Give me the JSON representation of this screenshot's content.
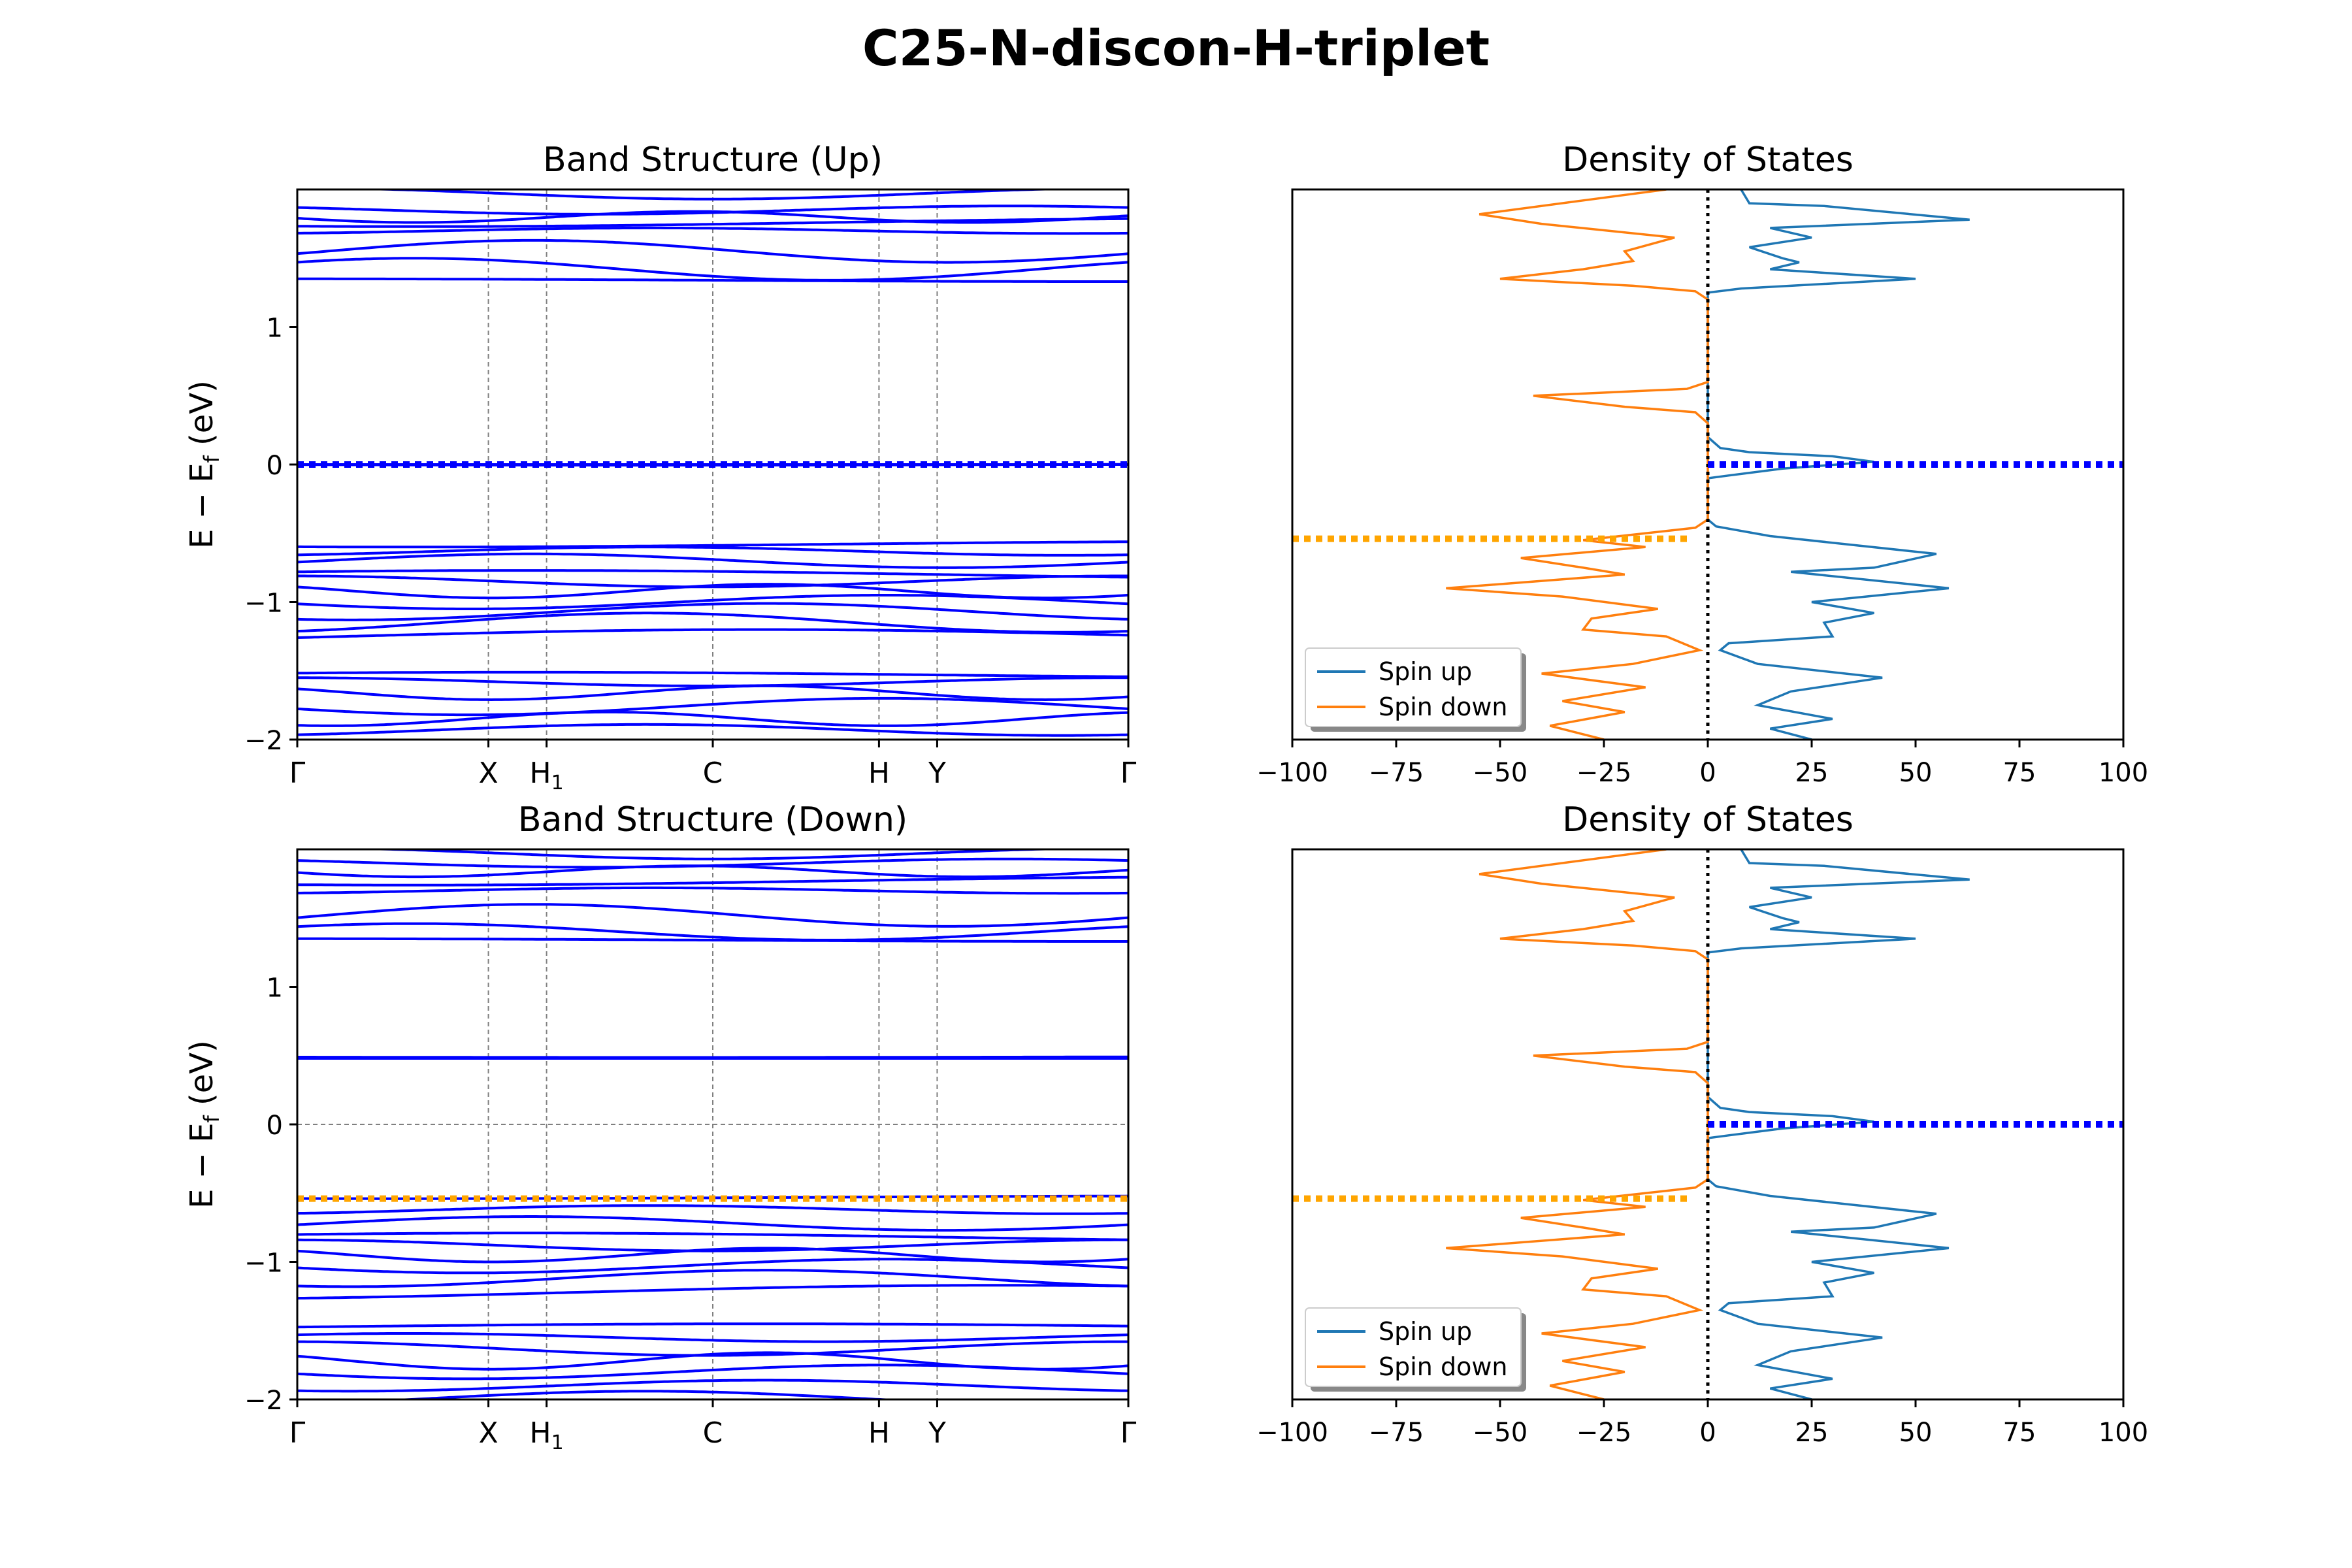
{
  "figure": {
    "title": "C25-N-discon-H-triplet"
  },
  "colors": {
    "band": "#0000ff",
    "spin_up": "#1f77b4",
    "spin_down": "#ff7f0e",
    "vbm_line": "#ffa500",
    "fermi_marker": "#0000ff",
    "kpath_grid": "#808080"
  },
  "kpath": {
    "labels": [
      "Γ",
      "X",
      "H1",
      "C",
      "H",
      "Y",
      "Γ"
    ],
    "positions": [
      0.0,
      0.23,
      0.3,
      0.5,
      0.7,
      0.77,
      1.0
    ]
  },
  "chart_data": [
    {
      "id": "band_up",
      "type": "line",
      "title": "Band Structure (Up)",
      "xlabel": "",
      "ylabel": "E − E_f (eV)",
      "ylim": [
        -2,
        2
      ],
      "yticks": [
        -2,
        -1,
        0,
        1
      ],
      "marker_line": {
        "y": 0.0,
        "color": "#0000ff",
        "style": "dotted"
      },
      "bands": [
        {
          "e": 1.97,
          "a": 0.04,
          "n": 2
        },
        {
          "e": 1.85,
          "a": 0.03,
          "n": 2
        },
        {
          "e": 1.8,
          "a": 0.04,
          "n": 3
        },
        {
          "e": 1.76,
          "a": 0.03,
          "n": 1
        },
        {
          "e": 1.7,
          "a": 0.02,
          "n": 2
        },
        {
          "e": 1.55,
          "a": 0.08,
          "n": 2
        },
        {
          "e": 1.42,
          "a": 0.08,
          "n": 2
        },
        {
          "e": 1.34,
          "a": 0.01,
          "n": 1
        },
        {
          "e": 0.0,
          "a": 0.0,
          "n": 1
        },
        {
          "e": 0.0,
          "a": 0.005,
          "n": 1
        },
        {
          "e": -0.58,
          "a": 0.02,
          "n": 1
        },
        {
          "e": -0.63,
          "a": 0.03,
          "n": 2
        },
        {
          "e": -0.7,
          "a": 0.05,
          "n": 2
        },
        {
          "e": -0.8,
          "a": 0.03,
          "n": 1
        },
        {
          "e": -0.85,
          "a": 0.04,
          "n": 2
        },
        {
          "e": -0.92,
          "a": 0.05,
          "n": 3
        },
        {
          "e": -1.0,
          "a": 0.05,
          "n": 2
        },
        {
          "e": -1.07,
          "a": 0.06,
          "n": 2
        },
        {
          "e": -1.15,
          "a": 0.07,
          "n": 2
        },
        {
          "e": -1.25,
          "a": 0.05,
          "n": 1
        },
        {
          "e": -1.53,
          "a": 0.02,
          "n": 1
        },
        {
          "e": -1.58,
          "a": 0.03,
          "n": 2
        },
        {
          "e": -1.66,
          "a": 0.05,
          "n": 3
        },
        {
          "e": -1.76,
          "a": 0.06,
          "n": 2
        },
        {
          "e": -1.85,
          "a": 0.05,
          "n": 3
        },
        {
          "e": -1.93,
          "a": 0.04,
          "n": 2
        }
      ]
    },
    {
      "id": "dos_up",
      "type": "line",
      "title": "Density of States",
      "xlim": [
        -100,
        100
      ],
      "ylim": [
        -2,
        2
      ],
      "xticks": [
        -100,
        -75,
        -50,
        -25,
        0,
        25,
        50,
        75,
        100
      ],
      "legend": {
        "placement": "lower-left",
        "entries": [
          "Spin up",
          "Spin down"
        ]
      },
      "zero_line": {
        "x": 0,
        "color": "#000000",
        "style": "dotted"
      },
      "fermi_marker": {
        "y": 0.0,
        "x_from": 0,
        "x_to": 100,
        "color": "#0000ff"
      },
      "vbm_marker": {
        "y": -0.54,
        "x_from": -100,
        "x_to": -5,
        "color": "#ffa500"
      },
      "series": [
        {
          "name": "Spin up",
          "color": "#1f77b4",
          "points": [
            [
              8,
              2.0
            ],
            [
              10,
              1.9
            ],
            [
              28,
              1.88
            ],
            [
              63,
              1.78
            ],
            [
              15,
              1.72
            ],
            [
              25,
              1.65
            ],
            [
              10,
              1.58
            ],
            [
              18,
              1.5
            ],
            [
              22,
              1.47
            ],
            [
              15,
              1.42
            ],
            [
              50,
              1.35
            ],
            [
              8,
              1.28
            ],
            [
              0,
              1.25
            ],
            [
              0,
              0.2
            ],
            [
              3,
              0.12
            ],
            [
              10,
              0.09
            ],
            [
              30,
              0.06
            ],
            [
              40,
              0.02
            ],
            [
              18,
              -0.03
            ],
            [
              5,
              -0.08
            ],
            [
              0,
              -0.1
            ],
            [
              0,
              -0.4
            ],
            [
              2,
              -0.45
            ],
            [
              15,
              -0.52
            ],
            [
              55,
              -0.65
            ],
            [
              40,
              -0.75
            ],
            [
              20,
              -0.78
            ],
            [
              58,
              -0.9
            ],
            [
              25,
              -1.0
            ],
            [
              40,
              -1.08
            ],
            [
              28,
              -1.15
            ],
            [
              30,
              -1.25
            ],
            [
              5,
              -1.3
            ],
            [
              3,
              -1.35
            ],
            [
              12,
              -1.45
            ],
            [
              42,
              -1.55
            ],
            [
              20,
              -1.65
            ],
            [
              12,
              -1.75
            ],
            [
              30,
              -1.85
            ],
            [
              15,
              -1.92
            ],
            [
              25,
              -2.0
            ]
          ]
        },
        {
          "name": "Spin down",
          "color": "#ff7f0e",
          "points": [
            [
              -10,
              2.0
            ],
            [
              -30,
              1.92
            ],
            [
              -55,
              1.82
            ],
            [
              -40,
              1.75
            ],
            [
              -8,
              1.65
            ],
            [
              -20,
              1.55
            ],
            [
              -18,
              1.48
            ],
            [
              -30,
              1.42
            ],
            [
              -50,
              1.35
            ],
            [
              -18,
              1.3
            ],
            [
              -3,
              1.26
            ],
            [
              0,
              1.2
            ],
            [
              0,
              0.6
            ],
            [
              -5,
              0.55
            ],
            [
              -42,
              0.5
            ],
            [
              -20,
              0.42
            ],
            [
              -3,
              0.38
            ],
            [
              0,
              0.3
            ],
            [
              0,
              -0.4
            ],
            [
              -3,
              -0.46
            ],
            [
              -30,
              -0.55
            ],
            [
              -15,
              -0.6
            ],
            [
              -45,
              -0.68
            ],
            [
              -30,
              -0.75
            ],
            [
              -20,
              -0.8
            ],
            [
              -63,
              -0.9
            ],
            [
              -35,
              -0.96
            ],
            [
              -12,
              -1.05
            ],
            [
              -28,
              -1.12
            ],
            [
              -30,
              -1.2
            ],
            [
              -10,
              -1.25
            ],
            [
              -2,
              -1.35
            ],
            [
              -18,
              -1.45
            ],
            [
              -40,
              -1.52
            ],
            [
              -15,
              -1.62
            ],
            [
              -35,
              -1.72
            ],
            [
              -20,
              -1.8
            ],
            [
              -38,
              -1.9
            ],
            [
              -25,
              -2.0
            ]
          ]
        }
      ]
    },
    {
      "id": "band_down",
      "type": "line",
      "title": "Band Structure (Down)",
      "xlabel": "",
      "ylabel": "E − E_f (eV)",
      "ylim": [
        -2,
        2
      ],
      "yticks": [
        -2,
        -1,
        0,
        1
      ],
      "fermi_line": {
        "y": 0.0,
        "color": "#808080",
        "style": "dashed"
      },
      "marker_line": {
        "y": -0.54,
        "color": "#ffa500",
        "style": "dotted"
      },
      "bands": [
        {
          "e": 1.97,
          "a": 0.04,
          "n": 2
        },
        {
          "e": 1.9,
          "a": 0.03,
          "n": 2
        },
        {
          "e": 1.84,
          "a": 0.04,
          "n": 3
        },
        {
          "e": 1.77,
          "a": 0.03,
          "n": 1
        },
        {
          "e": 1.7,
          "a": 0.02,
          "n": 2
        },
        {
          "e": 1.52,
          "a": 0.08,
          "n": 2
        },
        {
          "e": 1.4,
          "a": 0.06,
          "n": 2
        },
        {
          "e": 1.34,
          "a": 0.01,
          "n": 1
        },
        {
          "e": 0.48,
          "a": 0.0,
          "n": 1
        },
        {
          "e": 0.49,
          "a": 0.003,
          "n": 1
        },
        {
          "e": -0.53,
          "a": 0.01,
          "n": 1
        },
        {
          "e": -0.62,
          "a": 0.03,
          "n": 2
        },
        {
          "e": -0.72,
          "a": 0.05,
          "n": 2
        },
        {
          "e": -0.82,
          "a": 0.03,
          "n": 1
        },
        {
          "e": -0.88,
          "a": 0.04,
          "n": 2
        },
        {
          "e": -0.95,
          "a": 0.05,
          "n": 3
        },
        {
          "e": -1.03,
          "a": 0.05,
          "n": 2
        },
        {
          "e": -1.12,
          "a": 0.06,
          "n": 2
        },
        {
          "e": -1.22,
          "a": 0.05,
          "n": 1
        },
        {
          "e": -1.47,
          "a": 0.02,
          "n": 1
        },
        {
          "e": -1.55,
          "a": 0.03,
          "n": 2
        },
        {
          "e": -1.63,
          "a": 0.05,
          "n": 2
        },
        {
          "e": -1.72,
          "a": 0.06,
          "n": 3
        },
        {
          "e": -1.8,
          "a": 0.05,
          "n": 2
        },
        {
          "e": -1.9,
          "a": 0.04,
          "n": 2
        },
        {
          "e": -1.99,
          "a": 0.05,
          "n": 2
        }
      ]
    },
    {
      "id": "dos_down",
      "type": "line",
      "title": "Density of States",
      "xlim": [
        -100,
        100
      ],
      "ylim": [
        -2,
        2
      ],
      "xticks": [
        -100,
        -75,
        -50,
        -25,
        0,
        25,
        50,
        75,
        100
      ],
      "legend": {
        "placement": "lower-left",
        "entries": [
          "Spin up",
          "Spin down"
        ]
      },
      "zero_line": {
        "x": 0,
        "color": "#000000",
        "style": "dotted"
      },
      "fermi_marker": {
        "y": 0.0,
        "x_from": 0,
        "x_to": 100,
        "color": "#0000ff"
      },
      "vbm_marker": {
        "y": -0.54,
        "x_from": -100,
        "x_to": -5,
        "color": "#ffa500"
      },
      "series": [
        {
          "name": "Spin up",
          "color": "#1f77b4",
          "points": [
            [
              8,
              2.0
            ],
            [
              10,
              1.9
            ],
            [
              28,
              1.88
            ],
            [
              63,
              1.78
            ],
            [
              15,
              1.72
            ],
            [
              25,
              1.65
            ],
            [
              10,
              1.58
            ],
            [
              18,
              1.5
            ],
            [
              22,
              1.47
            ],
            [
              15,
              1.42
            ],
            [
              50,
              1.35
            ],
            [
              8,
              1.28
            ],
            [
              0,
              1.25
            ],
            [
              0,
              0.2
            ],
            [
              3,
              0.12
            ],
            [
              10,
              0.09
            ],
            [
              30,
              0.06
            ],
            [
              40,
              0.02
            ],
            [
              18,
              -0.03
            ],
            [
              5,
              -0.08
            ],
            [
              0,
              -0.1
            ],
            [
              0,
              -0.4
            ],
            [
              2,
              -0.45
            ],
            [
              15,
              -0.52
            ],
            [
              55,
              -0.65
            ],
            [
              40,
              -0.75
            ],
            [
              20,
              -0.78
            ],
            [
              58,
              -0.9
            ],
            [
              25,
              -1.0
            ],
            [
              40,
              -1.08
            ],
            [
              28,
              -1.15
            ],
            [
              30,
              -1.25
            ],
            [
              5,
              -1.3
            ],
            [
              3,
              -1.35
            ],
            [
              12,
              -1.45
            ],
            [
              42,
              -1.55
            ],
            [
              20,
              -1.65
            ],
            [
              12,
              -1.75
            ],
            [
              30,
              -1.85
            ],
            [
              15,
              -1.92
            ],
            [
              25,
              -2.0
            ]
          ]
        },
        {
          "name": "Spin down",
          "color": "#ff7f0e",
          "points": [
            [
              -10,
              2.0
            ],
            [
              -30,
              1.92
            ],
            [
              -55,
              1.82
            ],
            [
              -40,
              1.75
            ],
            [
              -8,
              1.65
            ],
            [
              -20,
              1.55
            ],
            [
              -18,
              1.48
            ],
            [
              -30,
              1.42
            ],
            [
              -50,
              1.35
            ],
            [
              -18,
              1.3
            ],
            [
              -3,
              1.26
            ],
            [
              0,
              1.2
            ],
            [
              0,
              0.6
            ],
            [
              -5,
              0.55
            ],
            [
              -42,
              0.5
            ],
            [
              -20,
              0.42
            ],
            [
              -3,
              0.38
            ],
            [
              0,
              0.3
            ],
            [
              0,
              -0.4
            ],
            [
              -3,
              -0.46
            ],
            [
              -30,
              -0.55
            ],
            [
              -15,
              -0.6
            ],
            [
              -45,
              -0.68
            ],
            [
              -30,
              -0.75
            ],
            [
              -20,
              -0.8
            ],
            [
              -63,
              -0.9
            ],
            [
              -35,
              -0.96
            ],
            [
              -12,
              -1.05
            ],
            [
              -28,
              -1.12
            ],
            [
              -30,
              -1.2
            ],
            [
              -10,
              -1.25
            ],
            [
              -2,
              -1.35
            ],
            [
              -18,
              -1.45
            ],
            [
              -40,
              -1.52
            ],
            [
              -15,
              -1.62
            ],
            [
              -35,
              -1.72
            ],
            [
              -20,
              -1.8
            ],
            [
              -38,
              -1.9
            ],
            [
              -25,
              -2.0
            ]
          ]
        }
      ]
    }
  ]
}
